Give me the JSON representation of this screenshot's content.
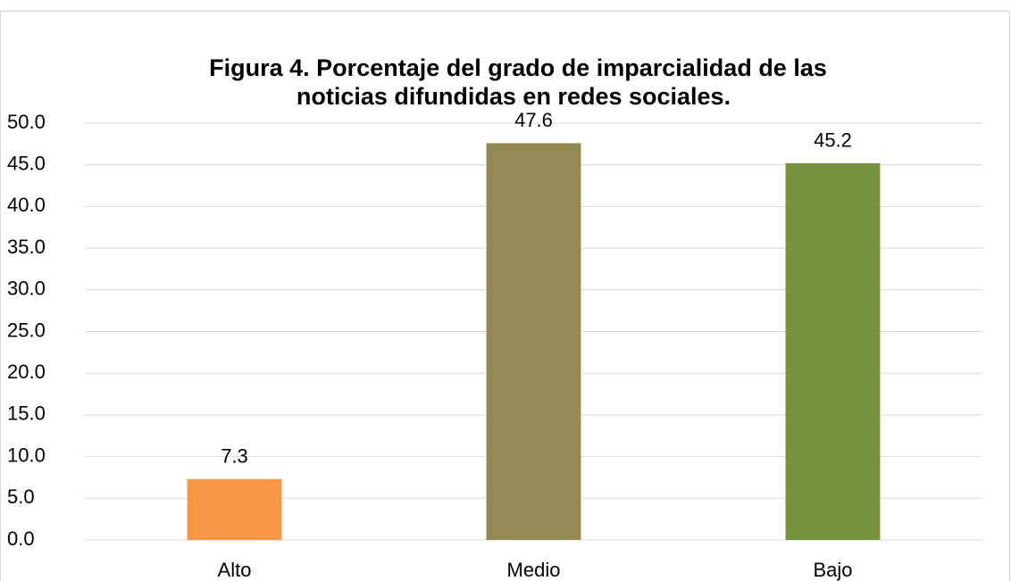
{
  "chart_data": {
    "type": "bar",
    "title": [
      "Figura 4. Porcentaje del grado de imparcialidad de las",
      "noticias difundidas en redes sociales."
    ],
    "categories": [
      "Alto",
      "Medio",
      "Bajo"
    ],
    "values": [
      7.3,
      47.6,
      45.2
    ],
    "colors": [
      "#f79646",
      "#938953",
      "#77933c"
    ],
    "ylim": [
      0,
      50
    ],
    "yticks": [
      {
        "value": 0,
        "label": "0.0"
      },
      {
        "value": 5,
        "label": "5.0"
      },
      {
        "value": 10,
        "label": "10.0"
      },
      {
        "value": 15,
        "label": "15.0"
      },
      {
        "value": 20,
        "label": "20.0"
      },
      {
        "value": 25,
        "label": "25.0"
      },
      {
        "value": 30,
        "label": "30.0"
      },
      {
        "value": 35,
        "label": "35.0"
      },
      {
        "value": 40,
        "label": "40.0"
      },
      {
        "value": 45,
        "label": "45.0"
      },
      {
        "value": 50,
        "label": "50.0"
      }
    ],
    "grid": true
  }
}
